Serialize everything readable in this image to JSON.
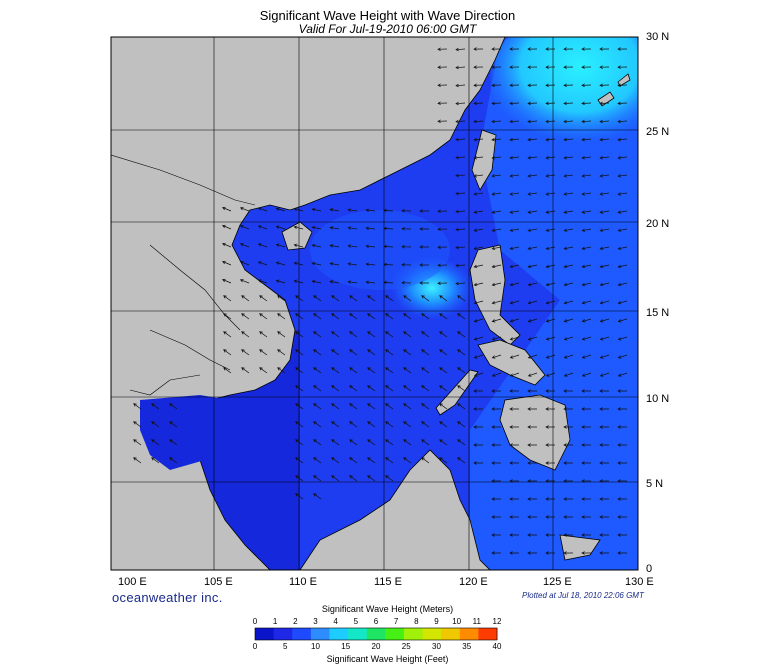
{
  "title": "Significant Wave Height with Wave Direction",
  "subtitle": "Valid For Jul-19-2010 06:00 GMT",
  "lat_labels": [
    "30 N",
    "25 N",
    "20 N",
    "15 N",
    "10 N",
    "5 N",
    "0"
  ],
  "lon_labels": [
    "100 E",
    "105 E",
    "110 E",
    "115 E",
    "120 E",
    "125 E",
    "130 E"
  ],
  "brand": "oceanweather inc.",
  "plotted_note": "Plotted at Jul 18, 2010 22:06 GMT",
  "colorbar": {
    "meters_title": "Significant Wave Height (Meters)",
    "feet_title": "Significant Wave Height (Feet)",
    "meters_ticks": [
      "0",
      "1",
      "2",
      "3",
      "4",
      "5",
      "6",
      "7",
      "8",
      "9",
      "10",
      "11",
      "12"
    ],
    "feet_ticks": [
      "0",
      "5",
      "10",
      "15",
      "20",
      "25",
      "30",
      "35",
      "40"
    ],
    "colors": [
      "#0a14c8",
      "#1e28e6",
      "#1e4bff",
      "#2d8cff",
      "#1ecdff",
      "#14e6c8",
      "#1ee664",
      "#46f014",
      "#a0f00a",
      "#d2e600",
      "#f0c800",
      "#ff8c00",
      "#ff3c00"
    ]
  },
  "colors": {
    "land": "#c0c0c0",
    "sea_low": "#1e28e6",
    "sea_mid": "#1e5aff",
    "sea_high": "#22e6ff",
    "arrow": "#111111"
  }
}
